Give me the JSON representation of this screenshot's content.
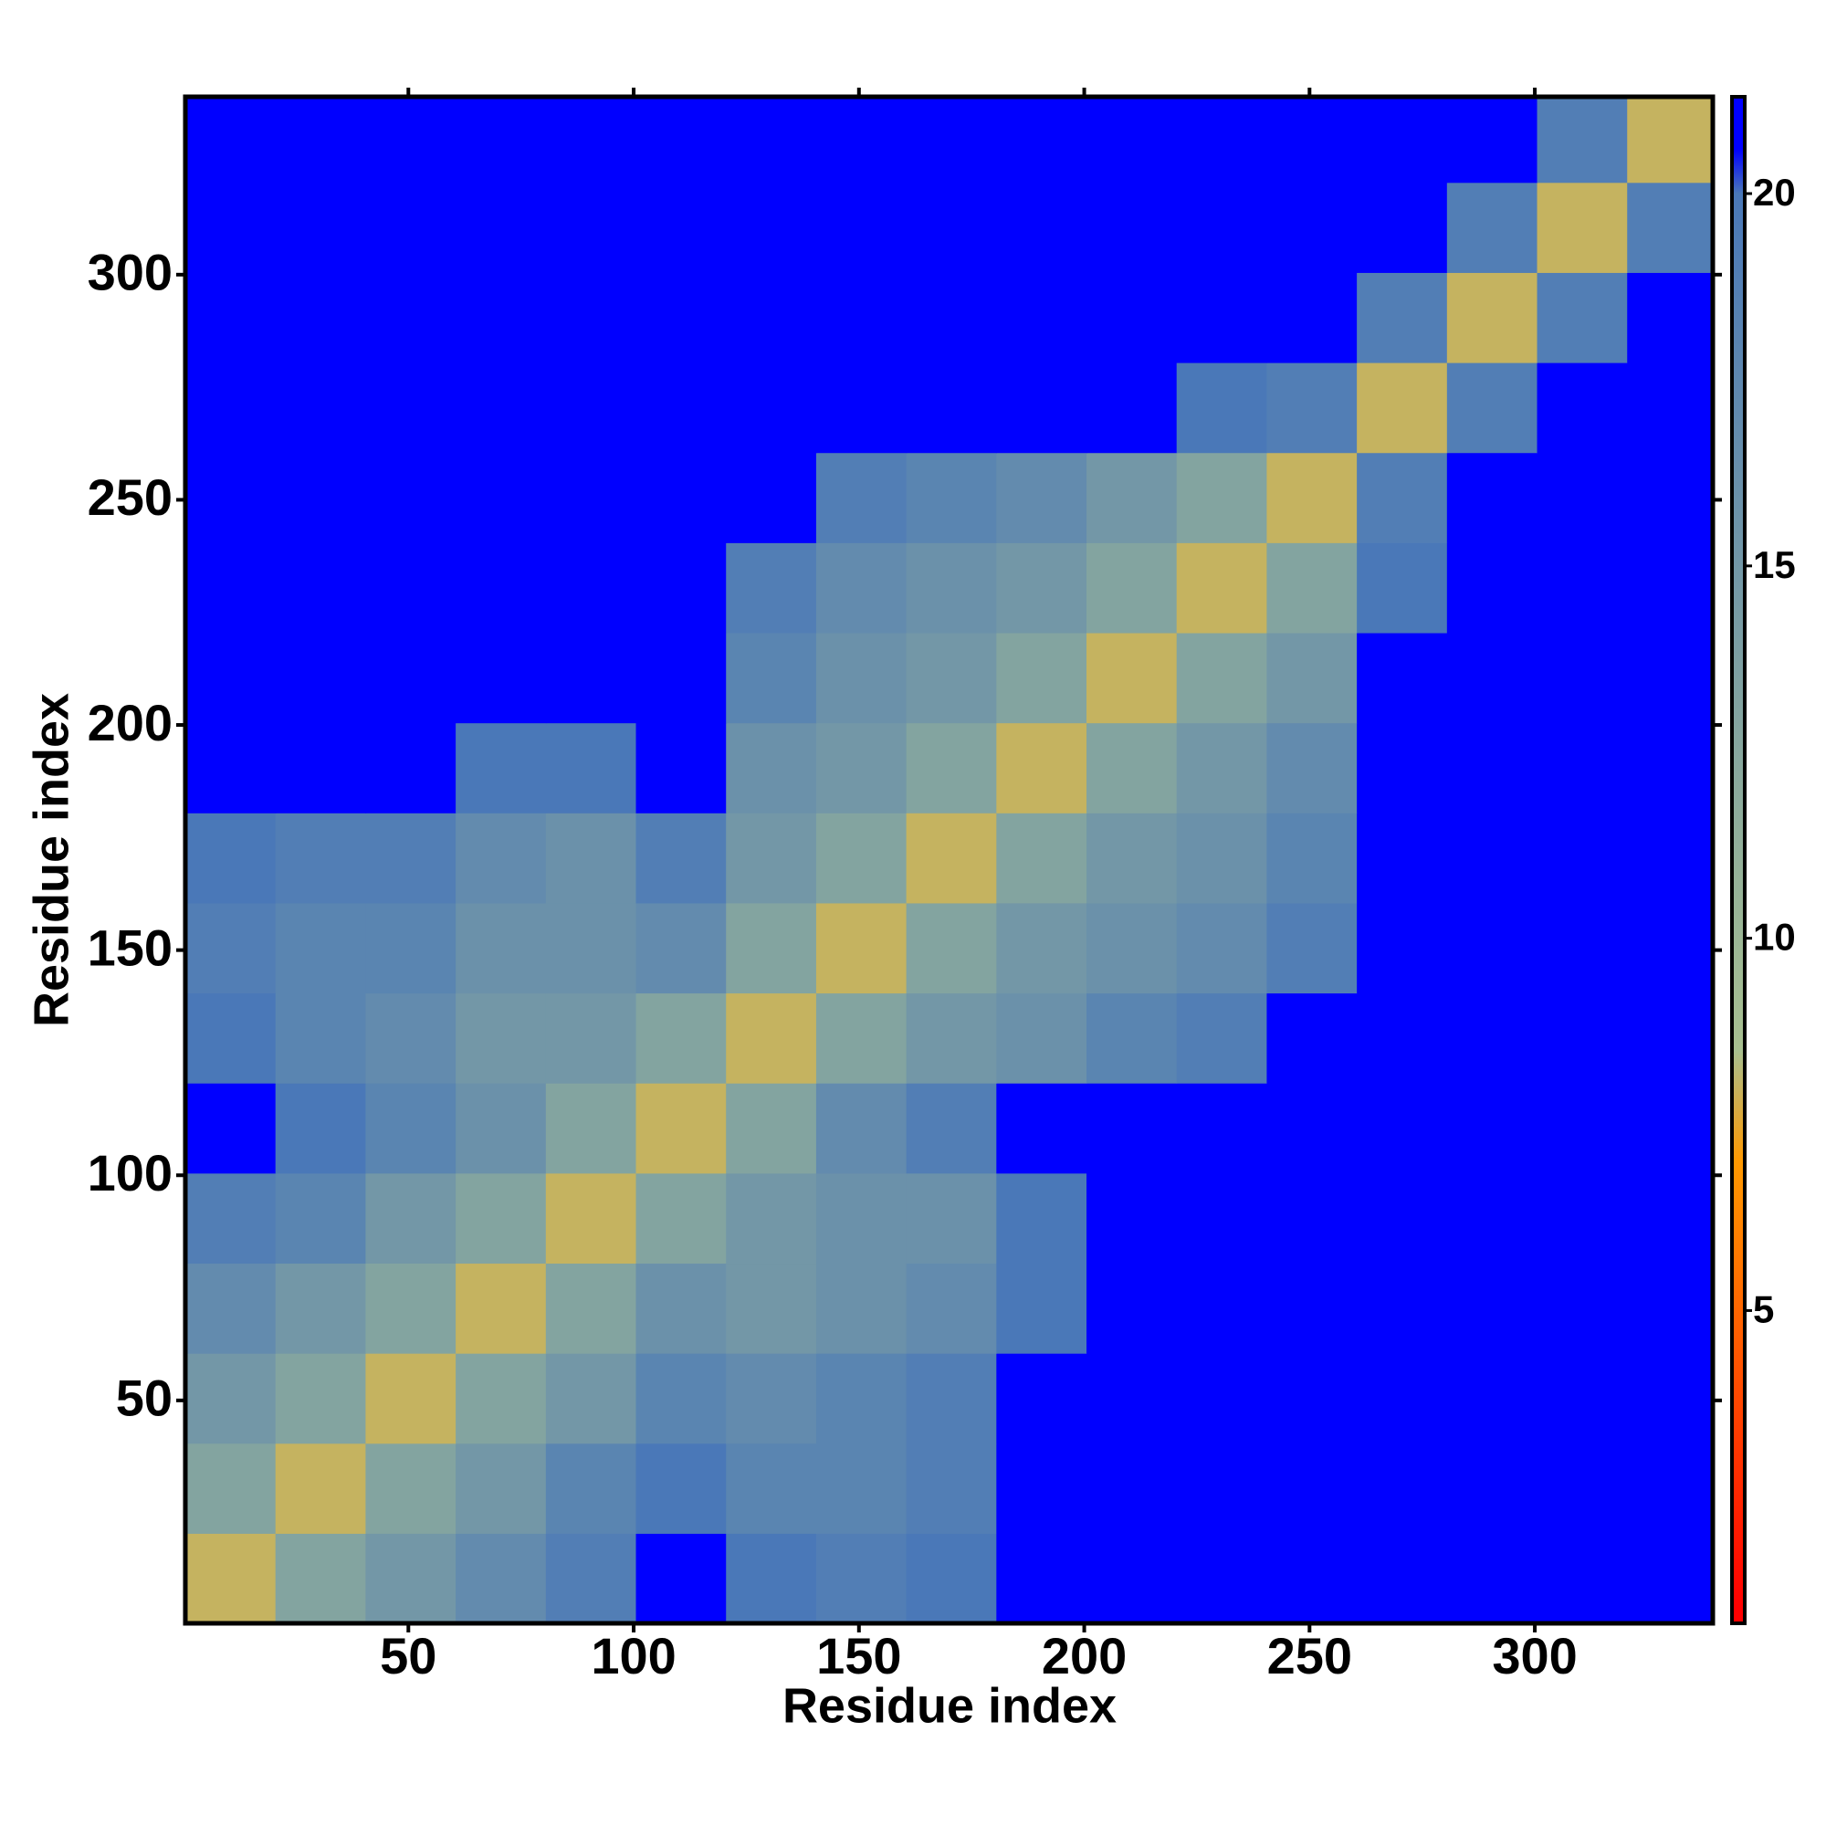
{
  "chart_data": {
    "type": "heatmap",
    "xlabel": "Residue index",
    "ylabel": "Residue index",
    "xlim": [
      0.5,
      339.5
    ],
    "ylim": [
      0.5,
      339.5
    ],
    "xticks": [
      50,
      100,
      150,
      200,
      250,
      300
    ],
    "yticks": [
      50,
      100,
      150,
      200,
      250,
      300
    ],
    "bin_edges": [
      0.5,
      20.5,
      40.5,
      60.5,
      80.5,
      100.5,
      120.5,
      140.5,
      160.5,
      180.5,
      200.5,
      220.5,
      240.5,
      260.5,
      280.5,
      300.5,
      320.5,
      339.5
    ],
    "z": [
      [
        8,
        13,
        15,
        17,
        19,
        21,
        20,
        19,
        20,
        21,
        21,
        21,
        21,
        21,
        21,
        21,
        21
      ],
      [
        13,
        8,
        13,
        15,
        18,
        20,
        18,
        18,
        19,
        21,
        21,
        21,
        21,
        21,
        21,
        21,
        21
      ],
      [
        15,
        13,
        8,
        13,
        15,
        18,
        17,
        18,
        19,
        21,
        21,
        21,
        21,
        21,
        21,
        21,
        21
      ],
      [
        17,
        15,
        13,
        8,
        13,
        16,
        15,
        16,
        17,
        20,
        21,
        21,
        21,
        21,
        21,
        21,
        21
      ],
      [
        19,
        18,
        15,
        13,
        8,
        13,
        15,
        16,
        16,
        20,
        21,
        21,
        21,
        21,
        21,
        21,
        21
      ],
      [
        21,
        20,
        18,
        16,
        13,
        8,
        13,
        17,
        19,
        21,
        21,
        21,
        21,
        21,
        21,
        21,
        21
      ],
      [
        20,
        18,
        17,
        15,
        15,
        13,
        8,
        13,
        15,
        16,
        18,
        19,
        21,
        21,
        21,
        21,
        21
      ],
      [
        19,
        18,
        18,
        16,
        16,
        17,
        13,
        8,
        13,
        15,
        16,
        17,
        19,
        21,
        21,
        21,
        21
      ],
      [
        20,
        19,
        19,
        17,
        16,
        19,
        15,
        13,
        8,
        13,
        15,
        16,
        18,
        21,
        21,
        21,
        21
      ],
      [
        21,
        21,
        21,
        20,
        20,
        21,
        16,
        15,
        13,
        8,
        13,
        15,
        17,
        21,
        21,
        21,
        21
      ],
      [
        21,
        21,
        21,
        21,
        21,
        21,
        18,
        16,
        15,
        13,
        8,
        13,
        15,
        21,
        21,
        21,
        21
      ],
      [
        21,
        21,
        21,
        21,
        21,
        21,
        19,
        17,
        16,
        15,
        13,
        8,
        13,
        20,
        21,
        21,
        21
      ],
      [
        21,
        21,
        21,
        21,
        21,
        21,
        21,
        19,
        18,
        17,
        15,
        13,
        8,
        19,
        21,
        21,
        21
      ],
      [
        21,
        21,
        21,
        21,
        21,
        21,
        21,
        21,
        21,
        21,
        21,
        20,
        19,
        8,
        19,
        21,
        21
      ],
      [
        21,
        21,
        21,
        21,
        21,
        21,
        21,
        21,
        21,
        21,
        21,
        21,
        21,
        19,
        8,
        19,
        21
      ],
      [
        21,
        21,
        21,
        21,
        21,
        21,
        21,
        21,
        21,
        21,
        21,
        21,
        21,
        21,
        19,
        8,
        19
      ],
      [
        21,
        21,
        21,
        21,
        21,
        21,
        21,
        21,
        21,
        21,
        21,
        21,
        21,
        21,
        21,
        19,
        8
      ]
    ],
    "zlim": [
      0.8,
      21.3
    ],
    "zticks": [
      5,
      10,
      15,
      20
    ],
    "colorscale": [
      [
        1,
        "#ff0000"
      ],
      [
        7,
        "#ff9900"
      ],
      [
        8.5,
        "#a8c090"
      ],
      [
        20,
        "#4a78b8"
      ],
      [
        20.6,
        "#0000ff"
      ]
    ]
  }
}
